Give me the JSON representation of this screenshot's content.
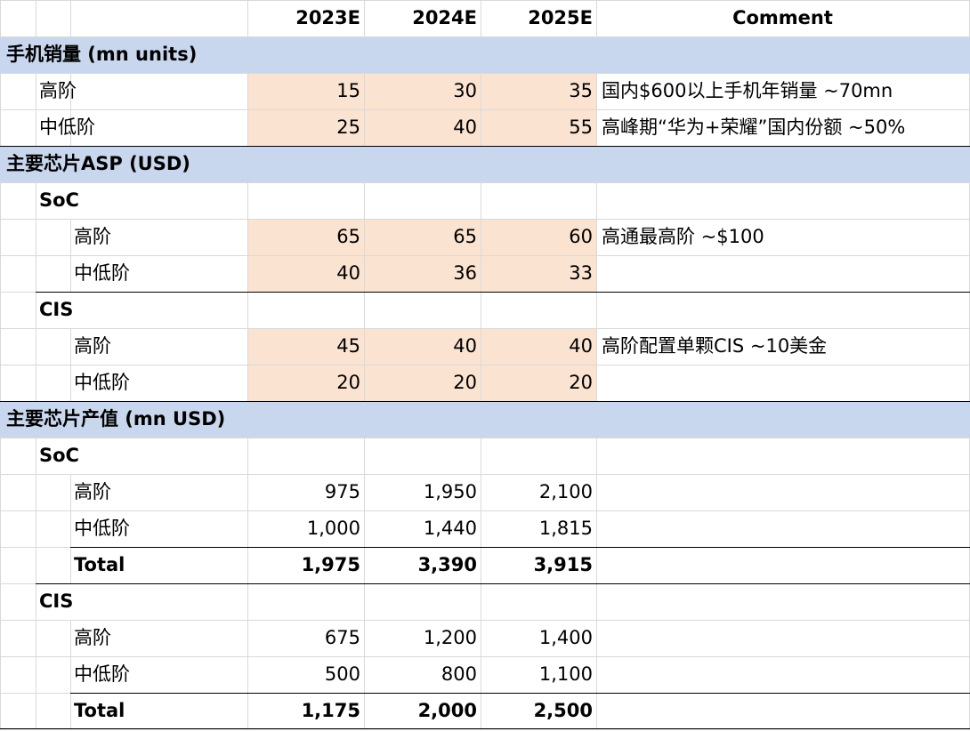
{
  "header": {
    "cols": [
      "2023E",
      "2024E",
      "2025E"
    ],
    "comment": "Comment"
  },
  "rows": [
    {
      "type": "section",
      "label": "手机销量 (mn units)"
    },
    {
      "type": "data",
      "level": 1,
      "label": "高阶",
      "values": [
        "15",
        "30",
        "35"
      ],
      "comment": "国内$600以上手机年销量 ~70mn",
      "hl": true
    },
    {
      "type": "data",
      "level": 1,
      "label": "中低阶",
      "values": [
        "25",
        "40",
        "55"
      ],
      "comment": "高峰期“华为+荣耀”国内份额 ~50%",
      "hl": true
    },
    {
      "type": "section",
      "label": "主要芯片ASP (USD)"
    },
    {
      "type": "group",
      "label": "SoC"
    },
    {
      "type": "data",
      "level": 2,
      "label": "高阶",
      "values": [
        "65",
        "65",
        "60"
      ],
      "comment": "高通最高阶 ~$100",
      "hl": true
    },
    {
      "type": "data",
      "level": 2,
      "label": "中低阶",
      "values": [
        "40",
        "36",
        "33"
      ],
      "comment": "",
      "hl": true
    },
    {
      "type": "group",
      "label": "CIS"
    },
    {
      "type": "data",
      "level": 2,
      "label": "高阶",
      "values": [
        "45",
        "40",
        "40"
      ],
      "comment": "高阶配置单颗CIS ~10美金",
      "hl": true
    },
    {
      "type": "data",
      "level": 2,
      "label": "中低阶",
      "values": [
        "20",
        "20",
        "20"
      ],
      "comment": "",
      "hl": true
    },
    {
      "type": "section",
      "label": "主要芯片产值 (mn USD)"
    },
    {
      "type": "group",
      "label": "SoC"
    },
    {
      "type": "data",
      "level": 2,
      "label": "高阶",
      "values": [
        "975",
        "1,950",
        "2,100"
      ],
      "comment": "",
      "hl": false
    },
    {
      "type": "data",
      "level": 2,
      "label": "中低阶",
      "values": [
        "1,000",
        "1,440",
        "1,815"
      ],
      "comment": "",
      "hl": false
    },
    {
      "type": "total",
      "label": "Total",
      "values": [
        "1,975",
        "3,390",
        "3,915"
      ]
    },
    {
      "type": "group",
      "label": "CIS"
    },
    {
      "type": "data",
      "level": 2,
      "label": "高阶",
      "values": [
        "675",
        "1,200",
        "1,400"
      ],
      "comment": "",
      "hl": false
    },
    {
      "type": "data",
      "level": 2,
      "label": "中低阶",
      "values": [
        "500",
        "800",
        "1,100"
      ],
      "comment": "",
      "hl": false
    },
    {
      "type": "total",
      "label": "Total",
      "values": [
        "1,175",
        "2,000",
        "2,500"
      ]
    }
  ]
}
